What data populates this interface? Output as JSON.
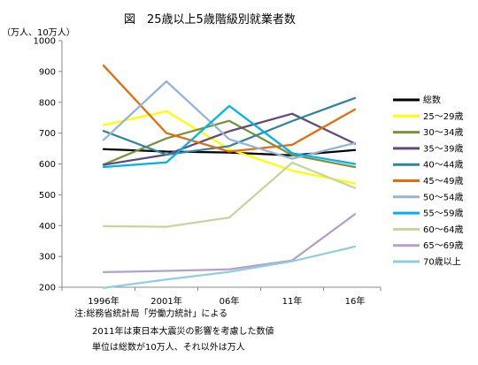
{
  "chart_data": {
    "type": "line",
    "title": "図　25歳以上5歳階級別就業者数",
    "unit_label": "（万人、10万人）",
    "x": [
      "1996年",
      "2001年",
      "06年",
      "11年",
      "16年"
    ],
    "ylim": [
      200,
      1000
    ],
    "yticks": [
      200,
      300,
      400,
      500,
      600,
      700,
      800,
      900,
      1000
    ],
    "grid": false,
    "legend_position": "right",
    "series": [
      {
        "name": "総数",
        "color": "#000000",
        "values": [
          648,
          640,
          637,
          628,
          645
        ]
      },
      {
        "name": "25～29歳",
        "color": "#ffff00",
        "values": [
          726,
          771,
          648,
          578,
          537
        ]
      },
      {
        "name": "30～34歳",
        "color": "#77933c",
        "values": [
          598,
          683,
          740,
          629,
          590
        ]
      },
      {
        "name": "35～39歳",
        "color": "#604a7b",
        "values": [
          597,
          630,
          706,
          763,
          666
        ]
      },
      {
        "name": "40～44歳",
        "color": "#31849b",
        "values": [
          707,
          630,
          658,
          739,
          814
        ]
      },
      {
        "name": "45～49歳",
        "color": "#e46c0a",
        "values": [
          919,
          700,
          640,
          662,
          777
        ]
      },
      {
        "name": "50～54歳",
        "color": "#95b3d7",
        "values": [
          678,
          868,
          680,
          617,
          668
        ]
      },
      {
        "name": "55～59歳",
        "color": "#00b0f0",
        "values": [
          590,
          605,
          788,
          635,
          600
        ]
      },
      {
        "name": "60～64歳",
        "color": "#c3d69b",
        "values": [
          398,
          396,
          426,
          604,
          522
        ]
      },
      {
        "name": "65～69歳",
        "color": "#b3a2c7",
        "values": [
          249,
          253,
          258,
          287,
          437
        ]
      },
      {
        "name": "70歳以上",
        "color": "#93cddd",
        "values": [
          198,
          225,
          250,
          284,
          332
        ]
      }
    ]
  },
  "notes": [
    "注:総務省統計局「労働力統計」による",
    "2011年は東日本大震災の影響を考慮した数値",
    "単位は総数が10万人、それ以外は万人"
  ]
}
